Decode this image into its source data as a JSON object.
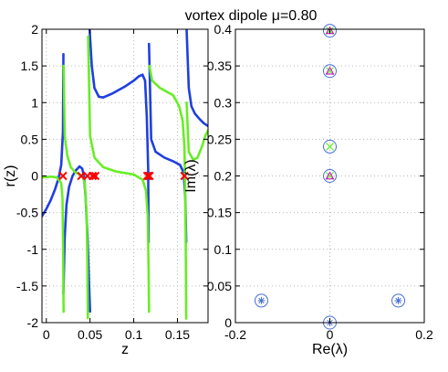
{
  "title": "vortex dipole μ=0.80",
  "colors": {
    "blue": "#1f3fe0",
    "green": "#66ee22",
    "red": "#ff0000",
    "magenta": "#cc00cc",
    "ring": "#4a6fd8",
    "grid": "#b8b8b8"
  },
  "chart_data": [
    {
      "type": "line",
      "id": "left",
      "xlabel": "z",
      "ylabel": "r(z)",
      "xlim": [
        -0.005,
        0.185
      ],
      "ylim": [
        -2,
        2
      ],
      "xticks": [
        0,
        0.05,
        0.1,
        0.15
      ],
      "xtick_labels": [
        "0",
        "0.05",
        "0.1",
        "0.15"
      ],
      "yticks": [
        -2,
        -1.5,
        -1,
        -0.5,
        0,
        0.5,
        1,
        1.5,
        2
      ],
      "ytick_labels": [
        "-2",
        "-1.5",
        "-1",
        "-0.5",
        "0",
        "0.5",
        "1",
        "1.5",
        "2"
      ],
      "grid": true,
      "series": [
        {
          "color_key": "blue",
          "style": "dotted-line",
          "segments": [
            [
              [
                -0.005,
                -0.55
              ],
              [
                0.0,
                -0.45
              ],
              [
                0.005,
                -0.33
              ],
              [
                0.01,
                -0.18
              ],
              [
                0.014,
                -0.03
              ],
              [
                0.017,
                0.15
              ],
              [
                0.019,
                0.6
              ],
              [
                0.0195,
                1.66
              ]
            ],
            [
              [
                0.0195,
                -1.6
              ],
              [
                0.021,
                -0.85
              ],
              [
                0.023,
                -0.4
              ],
              [
                0.026,
                -0.15
              ],
              [
                0.03,
                0.0
              ],
              [
                0.034,
                0.08
              ],
              [
                0.038,
                0.13
              ],
              [
                0.041,
                0.1
              ],
              [
                0.043,
                0.0
              ],
              [
                0.045,
                -0.3
              ],
              [
                0.047,
                -0.8
              ],
              [
                0.049,
                -1.5
              ],
              [
                0.05,
                -1.85
              ]
            ],
            [
              [
                0.0495,
                2.0
              ],
              [
                0.052,
                1.5
              ],
              [
                0.055,
                1.2
              ],
              [
                0.06,
                1.08
              ],
              [
                0.065,
                1.07
              ],
              [
                0.075,
                1.12
              ],
              [
                0.09,
                1.22
              ],
              [
                0.1,
                1.3
              ],
              [
                0.106,
                1.36
              ],
              [
                0.11,
                1.38
              ],
              [
                0.113,
                1.3
              ],
              [
                0.115,
                0.8
              ],
              [
                0.1165,
                0.1
              ],
              [
                0.117,
                -0.9
              ]
            ],
            [
              [
                0.1175,
                1.8
              ],
              [
                0.12,
                0.5
              ],
              [
                0.125,
                0.33
              ],
              [
                0.135,
                0.25
              ],
              [
                0.145,
                0.2
              ],
              [
                0.153,
                0.15
              ],
              [
                0.157,
                0.05
              ],
              [
                0.159,
                -0.3
              ],
              [
                0.16,
                -0.9
              ]
            ],
            [
              [
                0.1605,
                2.0
              ],
              [
                0.163,
                1.2
              ],
              [
                0.166,
                0.95
              ],
              [
                0.17,
                0.85
              ],
              [
                0.175,
                0.78
              ],
              [
                0.18,
                0.72
              ],
              [
                0.185,
                0.68
              ]
            ]
          ]
        },
        {
          "color_key": "green",
          "style": "dotted-line",
          "segments": [
            [
              [
                -0.005,
                -0.02
              ],
              [
                0.005,
                -0.01
              ],
              [
                0.012,
                -0.02
              ],
              [
                0.017,
                -0.1
              ],
              [
                0.0185,
                -0.3
              ],
              [
                0.0192,
                -1.0
              ],
              [
                0.0197,
                -1.85
              ]
            ],
            [
              [
                0.0197,
                1.5
              ],
              [
                0.021,
                0.55
              ],
              [
                0.024,
                0.27
              ],
              [
                0.028,
                0.12
              ],
              [
                0.033,
                0.05
              ],
              [
                0.038,
                0.02
              ],
              [
                0.041,
                0.0
              ],
              [
                0.044,
                -0.1
              ],
              [
                0.046,
                -0.5
              ],
              [
                0.047,
                -1.2
              ],
              [
                0.0475,
                -1.95
              ]
            ],
            [
              [
                0.0478,
                1.9
              ],
              [
                0.05,
                0.55
              ],
              [
                0.055,
                0.25
              ],
              [
                0.065,
                0.12
              ],
              [
                0.08,
                0.06
              ],
              [
                0.1,
                0.02
              ],
              [
                0.11,
                -0.05
              ],
              [
                0.114,
                -0.2
              ],
              [
                0.116,
                -0.55
              ],
              [
                0.117,
                -1.3
              ],
              [
                0.1175,
                -1.85
              ]
            ],
            [
              [
                0.118,
                1.5
              ],
              [
                0.121,
                1.3
              ],
              [
                0.13,
                1.2
              ],
              [
                0.145,
                1.1
              ],
              [
                0.152,
                0.95
              ],
              [
                0.156,
                0.75
              ],
              [
                0.158,
                0.4
              ],
              [
                0.159,
                -0.3
              ],
              [
                0.1595,
                -1.0
              ],
              [
                0.16,
                -1.95
              ]
            ],
            [
              [
                0.1605,
                1.0
              ],
              [
                0.163,
                0.33
              ],
              [
                0.168,
                0.22
              ],
              [
                0.173,
                0.25
              ],
              [
                0.178,
                0.4
              ],
              [
                0.182,
                0.55
              ],
              [
                0.185,
                0.62
              ]
            ]
          ]
        }
      ],
      "markers": {
        "color_key": "red",
        "shape": "x",
        "x": [
          0.019,
          0.04,
          0.047,
          0.053,
          0.056,
          0.1155,
          0.117,
          0.118,
          0.158
        ],
        "y": [
          0,
          0,
          0,
          0,
          0,
          0,
          0,
          0,
          0
        ]
      }
    },
    {
      "type": "scatter",
      "id": "right",
      "xlabel": "Re(λ)",
      "ylabel": "Im(λ)",
      "xlim": [
        -0.2,
        0.2
      ],
      "ylim": [
        0,
        0.4
      ],
      "xticks": [
        -0.2,
        0,
        0.2
      ],
      "xtick_labels": [
        "-0.2",
        "0",
        "0.2"
      ],
      "yticks": [
        0,
        0.05,
        0.1,
        0.15,
        0.2,
        0.25,
        0.3,
        0.35,
        0.4
      ],
      "ytick_labels": [
        "0",
        "0.05",
        "0.1",
        "0.15",
        "0.2",
        "0.25",
        "0.3",
        "0.35",
        "0.4"
      ],
      "grid": true,
      "series": [
        {
          "marker": "circle",
          "color_key": "ring",
          "x": [
            0,
            0,
            0,
            0,
            0,
            -0.145,
            0.145
          ],
          "y": [
            0.0,
            0.2,
            0.24,
            0.343,
            0.398,
            0.03,
            0.03
          ]
        },
        {
          "marker": "x",
          "color_key": "green",
          "x": [
            0,
            0,
            0,
            0
          ],
          "y": [
            0.2,
            0.24,
            0.343,
            0.398
          ]
        },
        {
          "marker": "triangle",
          "color_key": "magenta",
          "x": [
            0,
            0,
            0
          ],
          "y": [
            0.2,
            0.343,
            0.398
          ]
        },
        {
          "marker": "star",
          "color_key": "ring",
          "x": [
            -0.145,
            0.145,
            0
          ],
          "y": [
            0.03,
            0.03,
            0.0
          ]
        }
      ]
    }
  ]
}
